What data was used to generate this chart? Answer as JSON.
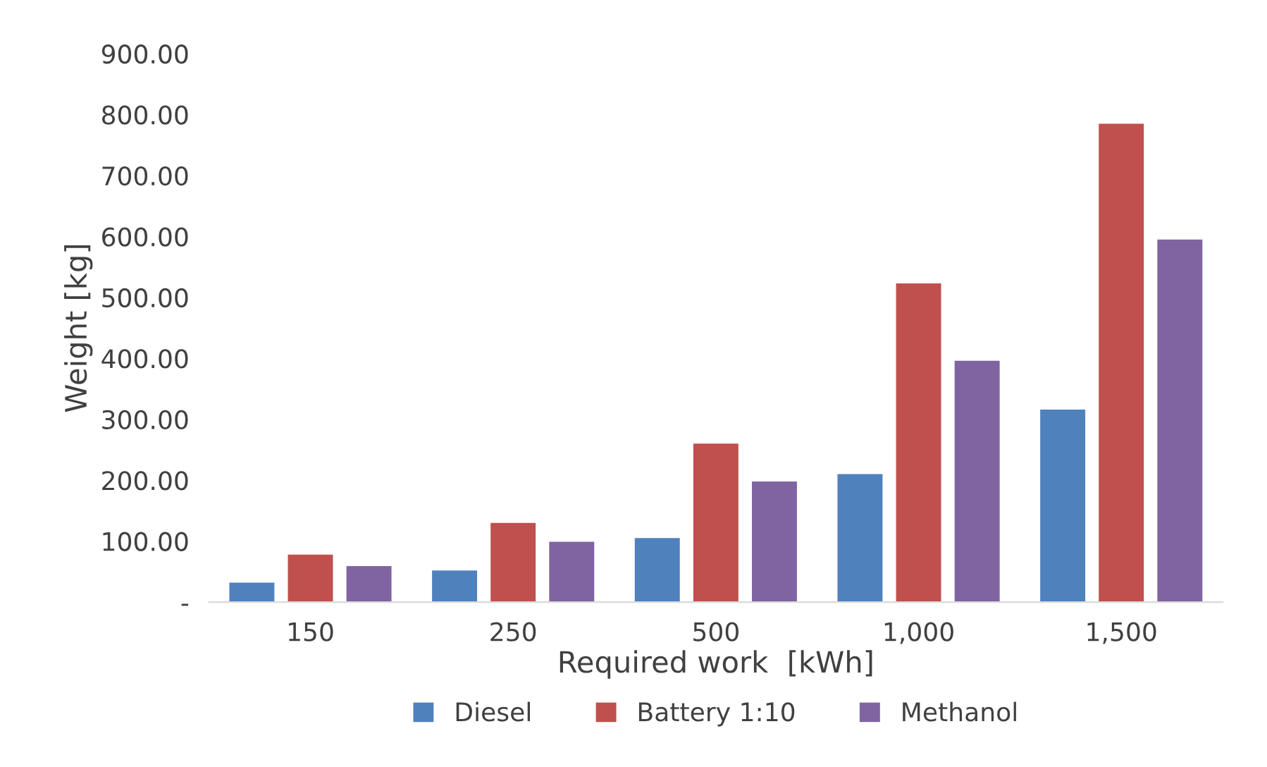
{
  "chart_data": {
    "type": "bar",
    "xlabel": "Required work  [kWh]",
    "ylabel": "Weight [kg]",
    "categories": [
      "150",
      "250",
      "500",
      "1,000",
      "1,500"
    ],
    "series": [
      {
        "name": "Diesel",
        "color": "#4f81bd",
        "values": [
          32,
          52,
          105,
          210,
          316
        ]
      },
      {
        "name": "Battery 1:10",
        "color": "#c0504d",
        "values": [
          78,
          130,
          260,
          523,
          785
        ]
      },
      {
        "name": "Methanol",
        "color": "#8064a2",
        "values": [
          59,
          99,
          198,
          396,
          595
        ]
      }
    ],
    "ylim": [
      0,
      900
    ],
    "yticks": [
      {
        "value": 0,
        "label": "-"
      },
      {
        "value": 100,
        "label": "100.00"
      },
      {
        "value": 200,
        "label": "200.00"
      },
      {
        "value": 300,
        "label": "300.00"
      },
      {
        "value": 400,
        "label": "400.00"
      },
      {
        "value": 500,
        "label": "500.00"
      },
      {
        "value": 600,
        "label": "600.00"
      },
      {
        "value": 700,
        "label": "700.00"
      },
      {
        "value": 800,
        "label": "800.00"
      },
      {
        "value": 900,
        "label": "900.00"
      }
    ],
    "grid": false,
    "legend": "bottom"
  }
}
